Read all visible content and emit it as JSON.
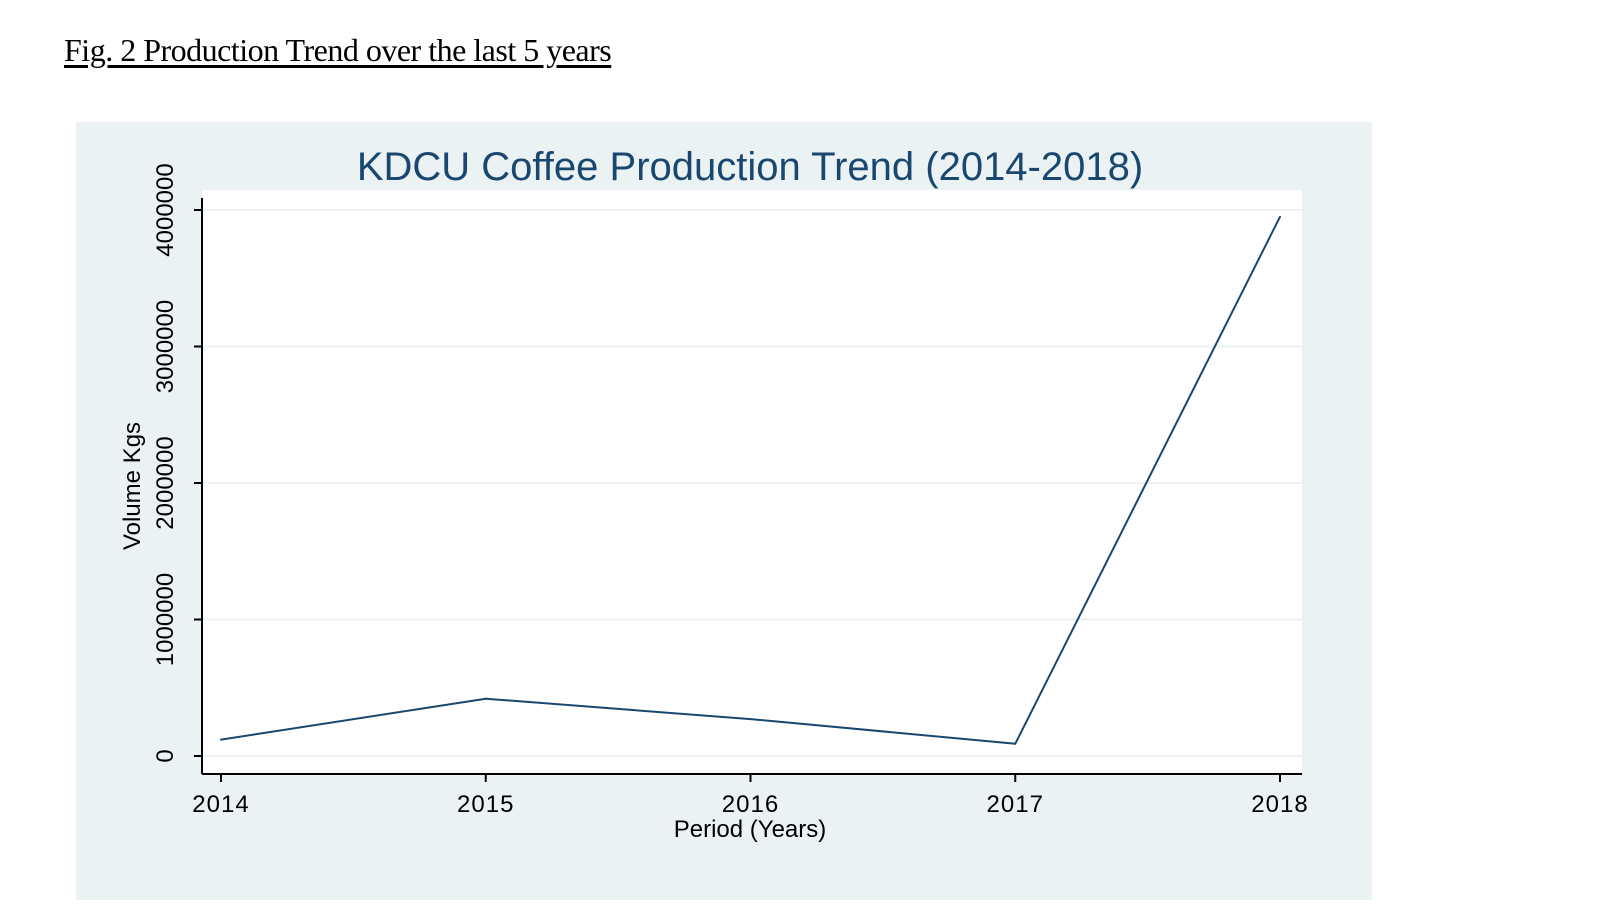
{
  "figure": {
    "caption": "Fig. 2 Production Trend over the last 5 years"
  },
  "colors": {
    "frame_background": "#eaf2f3",
    "plot_background": "#ffffff",
    "grid": "#eaf2f3",
    "title": "#1a476f",
    "series_line": "#1a476f",
    "axis": "#000000",
    "text": "#000000"
  },
  "chart_data": {
    "type": "line",
    "title": "KDCU Coffee Production Trend (2014-2018)",
    "xlabel": "Period (Years)",
    "ylabel": "Volume Kgs",
    "x": [
      2014,
      2015,
      2016,
      2017,
      2018
    ],
    "series": [
      {
        "values": [
          120000,
          420000,
          270000,
          90000,
          3950000
        ]
      }
    ],
    "x_ticks": [
      "2014",
      "2015",
      "2016",
      "2017",
      "2018"
    ],
    "y_ticks": [
      "0",
      "1000000",
      "2000000",
      "3000000",
      "4000000"
    ],
    "xlim": [
      2014,
      2018
    ],
    "ylim": [
      0,
      4000000
    ],
    "grid": true,
    "legend": "none"
  }
}
